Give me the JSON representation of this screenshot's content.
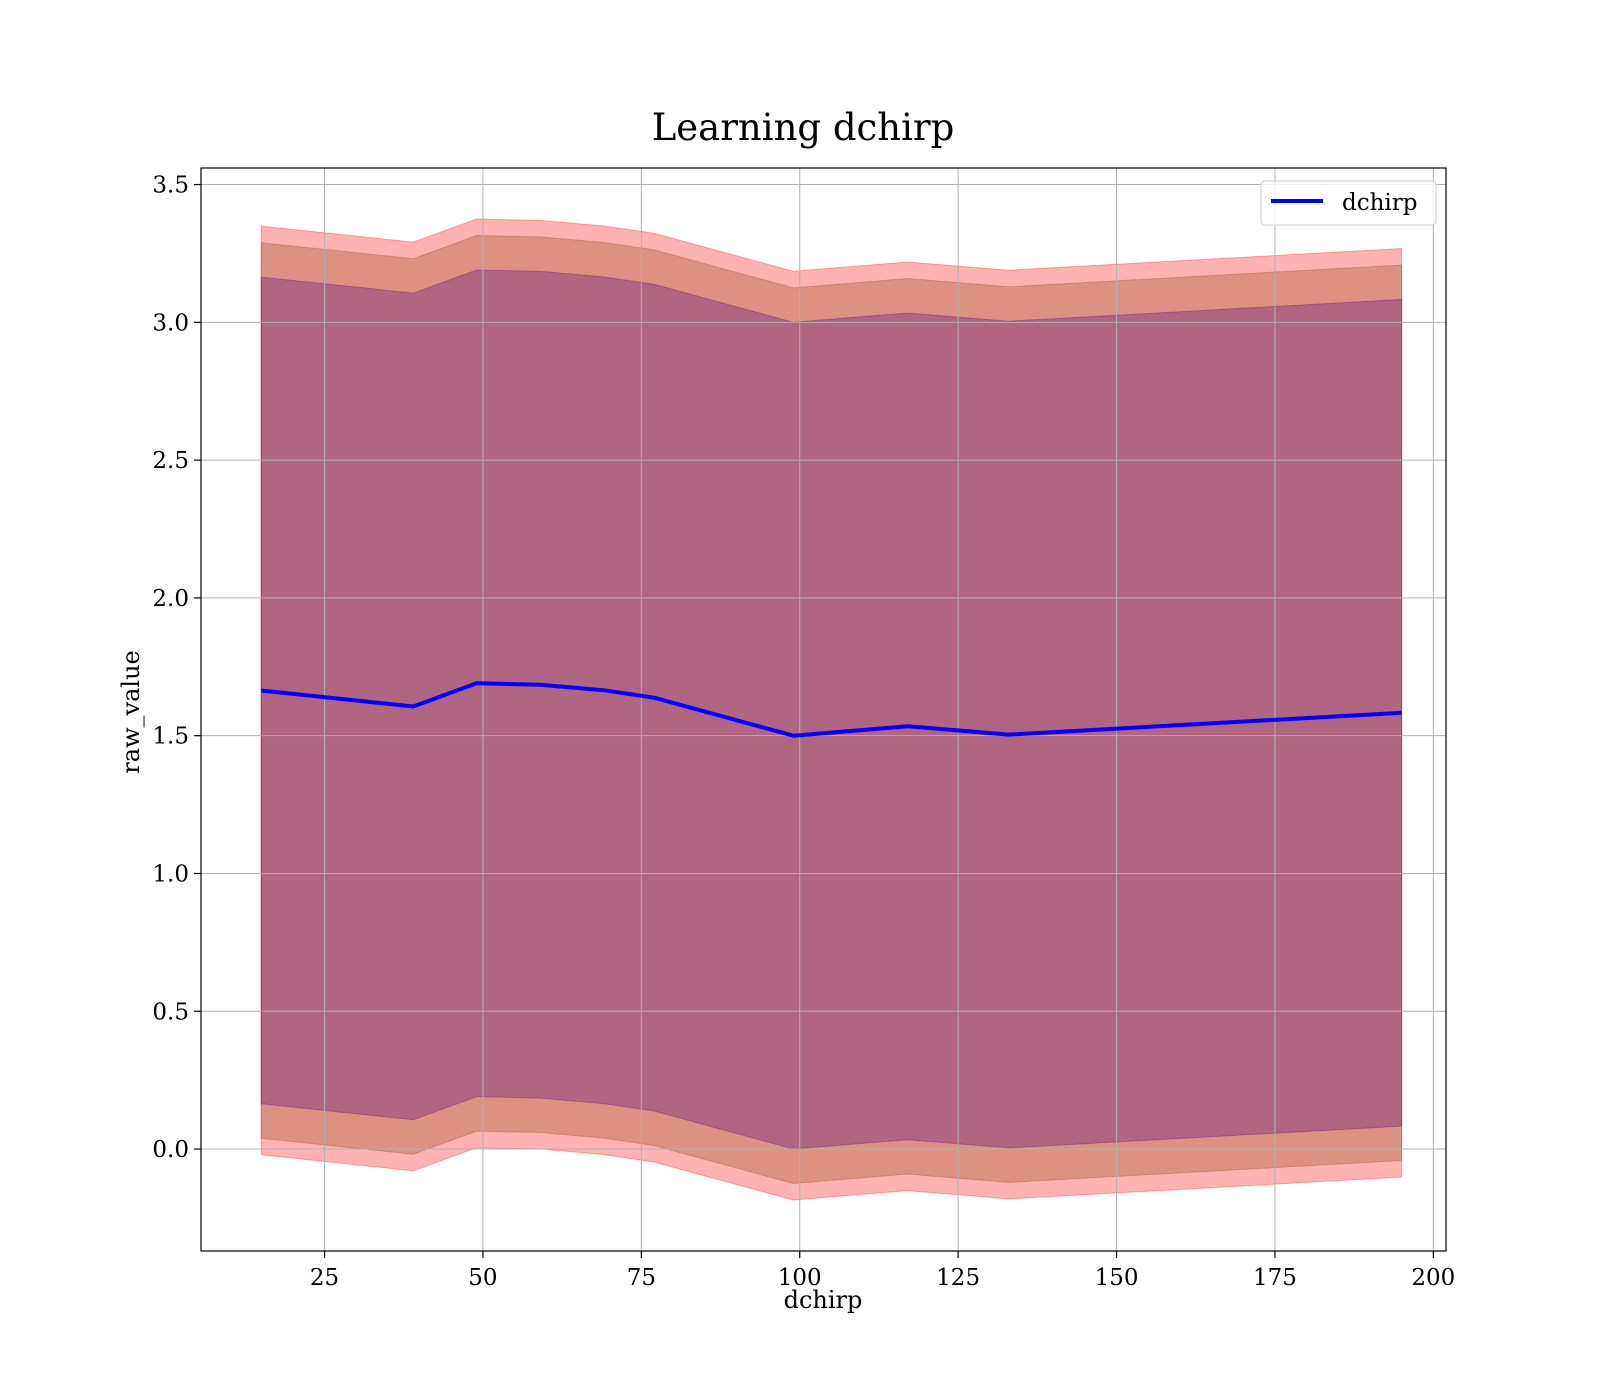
{
  "chart_data": {
    "type": "line",
    "title": "Learning dchirp",
    "xlabel": "dchirp",
    "ylabel": "raw_value",
    "xlim": [
      5.5,
      202
    ],
    "ylim": [
      -0.37,
      3.56
    ],
    "x_ticks": [
      25,
      50,
      75,
      100,
      125,
      150,
      175,
      200
    ],
    "y_ticks": [
      0.0,
      0.5,
      1.0,
      1.5,
      2.0,
      2.5,
      3.0,
      3.5
    ],
    "x_tick_labels": [
      "25",
      "50",
      "75",
      "100",
      "125",
      "150",
      "175",
      "200"
    ],
    "y_tick_labels": [
      "0.0",
      "0.5",
      "1.0",
      "1.5",
      "2.0",
      "2.5",
      "3.0",
      "3.5"
    ],
    "grid": true,
    "legend": {
      "position": "top-right",
      "entries": [
        "dchirp"
      ]
    },
    "x": [
      15,
      39,
      49,
      59,
      69,
      77,
      99,
      117,
      133,
      195
    ],
    "series": [
      {
        "name": "dchirp",
        "color": "#0000ff",
        "values": [
          1.664,
          1.606,
          1.69,
          1.685,
          1.665,
          1.638,
          1.5,
          1.534,
          1.504,
          1.583
        ]
      }
    ],
    "bands": [
      {
        "color": "#ff0000",
        "alpha": 0.3,
        "offset": 1.685
      },
      {
        "color": "#8b4513",
        "alpha": 0.3,
        "offset": 1.625
      },
      {
        "color": "#4b0082",
        "alpha": 0.3,
        "offset": 1.5
      }
    ]
  }
}
